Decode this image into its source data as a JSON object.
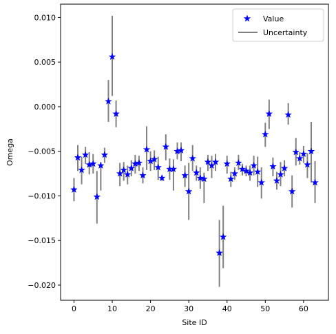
{
  "chart_data": {
    "type": "scatter",
    "xlabel": "Site ID",
    "ylabel": "Omega",
    "xlim": [
      -3.5,
      66.5
    ],
    "ylim": [
      -0.0217,
      0.0115
    ],
    "xticks": [
      0,
      10,
      20,
      30,
      40,
      50,
      60
    ],
    "xtick_labels": [
      "0",
      "10",
      "20",
      "30",
      "40",
      "50",
      "60"
    ],
    "yticks": [
      0.01,
      0.005,
      0.0,
      -0.005,
      -0.01,
      -0.015,
      -0.02
    ],
    "ytick_labels": [
      "0.010",
      "0.005",
      "0.000",
      "−0.005",
      "−0.010",
      "−0.015",
      "−0.020"
    ],
    "grid": false,
    "legend_position": "top-right",
    "legend": [
      {
        "label": "Value",
        "marker": "star",
        "color": "#0000ff"
      },
      {
        "label": "Uncertainty",
        "marker": "line",
        "color": "#808080"
      }
    ],
    "points": [
      {
        "x": 0,
        "y": -0.0093,
        "lo": -0.0106,
        "hi": -0.008
      },
      {
        "x": 1,
        "y": -0.0057,
        "lo": -0.0072,
        "hi": -0.0043
      },
      {
        "x": 2,
        "y": -0.0071,
        "lo": -0.0087,
        "hi": -0.0056
      },
      {
        "x": 3,
        "y": -0.0054,
        "lo": -0.0064,
        "hi": -0.0045
      },
      {
        "x": 4,
        "y": -0.0065,
        "lo": -0.0076,
        "hi": -0.0051
      },
      {
        "x": 5,
        "y": -0.0064,
        "lo": -0.0075,
        "hi": -0.0053
      },
      {
        "x": 6,
        "y": -0.0101,
        "lo": -0.0131,
        "hi": -0.0072
      },
      {
        "x": 7,
        "y": -0.0066,
        "lo": -0.0094,
        "hi": -0.0062
      },
      {
        "x": 8,
        "y": -0.0054,
        "lo": -0.0063,
        "hi": -0.0046
      },
      {
        "x": 9,
        "y": 0.0006,
        "lo": -0.0017,
        "hi": 0.003
      },
      {
        "x": 10,
        "y": 0.0056,
        "lo": 0.0012,
        "hi": 0.0102
      },
      {
        "x": 11,
        "y": -0.0008,
        "lo": -0.0023,
        "hi": 0.0007
      },
      {
        "x": 12,
        "y": -0.0075,
        "lo": -0.0089,
        "hi": -0.0063
      },
      {
        "x": 13,
        "y": -0.0071,
        "lo": -0.0083,
        "hi": -0.0062
      },
      {
        "x": 14,
        "y": -0.0076,
        "lo": -0.0087,
        "hi": -0.0066
      },
      {
        "x": 15,
        "y": -0.0069,
        "lo": -0.0078,
        "hi": -0.006
      },
      {
        "x": 16,
        "y": -0.0064,
        "lo": -0.0075,
        "hi": -0.0054
      },
      {
        "x": 17,
        "y": -0.0063,
        "lo": -0.0072,
        "hi": -0.0055
      },
      {
        "x": 18,
        "y": -0.0077,
        "lo": -0.0086,
        "hi": -0.0068
      },
      {
        "x": 19,
        "y": -0.0048,
        "lo": -0.0071,
        "hi": -0.0022
      },
      {
        "x": 20,
        "y": -0.0061,
        "lo": -0.0072,
        "hi": -0.005
      },
      {
        "x": 21,
        "y": -0.0059,
        "lo": -0.0071,
        "hi": -0.0049
      },
      {
        "x": 22,
        "y": -0.0068,
        "lo": -0.0082,
        "hi": -0.0056
      },
      {
        "x": 23,
        "y": -0.008,
        "lo": -0.0083,
        "hi": -0.0077
      },
      {
        "x": 24,
        "y": -0.0045,
        "lo": -0.006,
        "hi": -0.0031
      },
      {
        "x": 25,
        "y": -0.007,
        "lo": -0.0082,
        "hi": -0.0058
      },
      {
        "x": 26,
        "y": -0.007,
        "lo": -0.0094,
        "hi": -0.0059
      },
      {
        "x": 27,
        "y": -0.005,
        "lo": -0.0059,
        "hi": -0.004
      },
      {
        "x": 28,
        "y": -0.0049,
        "lo": -0.0061,
        "hi": -0.004
      },
      {
        "x": 29,
        "y": -0.0077,
        "lo": -0.009,
        "hi": -0.0066
      },
      {
        "x": 30,
        "y": -0.0095,
        "lo": -0.0127,
        "hi": -0.0063
      },
      {
        "x": 31,
        "y": -0.0058,
        "lo": -0.0072,
        "hi": -0.0043
      },
      {
        "x": 32,
        "y": -0.0074,
        "lo": -0.0083,
        "hi": -0.0066
      },
      {
        "x": 33,
        "y": -0.008,
        "lo": -0.0092,
        "hi": -0.0068
      },
      {
        "x": 34,
        "y": -0.0081,
        "lo": -0.0108,
        "hi": -0.0074
      },
      {
        "x": 35,
        "y": -0.0062,
        "lo": -0.0072,
        "hi": -0.0054
      },
      {
        "x": 36,
        "y": -0.0066,
        "lo": -0.008,
        "hi": -0.0055
      },
      {
        "x": 37,
        "y": -0.0062,
        "lo": -0.0072,
        "hi": -0.0053
      },
      {
        "x": 38,
        "y": -0.0164,
        "lo": -0.0202,
        "hi": -0.0127
      },
      {
        "x": 39,
        "y": -0.0146,
        "lo": -0.0181,
        "hi": -0.0111
      },
      {
        "x": 40,
        "y": -0.0064,
        "lo": -0.0075,
        "hi": -0.0055
      },
      {
        "x": 41,
        "y": -0.0081,
        "lo": -0.009,
        "hi": -0.0073
      },
      {
        "x": 42,
        "y": -0.0075,
        "lo": -0.0082,
        "hi": -0.0068
      },
      {
        "x": 43,
        "y": -0.0063,
        "lo": -0.0071,
        "hi": -0.0054
      },
      {
        "x": 44,
        "y": -0.007,
        "lo": -0.0077,
        "hi": -0.0064
      },
      {
        "x": 45,
        "y": -0.0072,
        "lo": -0.0078,
        "hi": -0.0066
      },
      {
        "x": 46,
        "y": -0.0074,
        "lo": -0.0083,
        "hi": -0.0066
      },
      {
        "x": 47,
        "y": -0.0066,
        "lo": -0.0077,
        "hi": -0.0055
      },
      {
        "x": 48,
        "y": -0.0073,
        "lo": -0.009,
        "hi": -0.0056
      },
      {
        "x": 49,
        "y": -0.0085,
        "lo": -0.0103,
        "hi": -0.0068
      },
      {
        "x": 50,
        "y": -0.0031,
        "lo": -0.0045,
        "hi": -0.0018
      },
      {
        "x": 51,
        "y": -0.0008,
        "lo": -0.0025,
        "hi": 0.0008
      },
      {
        "x": 52,
        "y": -0.0067,
        "lo": -0.0078,
        "hi": -0.0057
      },
      {
        "x": 53,
        "y": -0.0083,
        "lo": -0.0093,
        "hi": -0.0073
      },
      {
        "x": 54,
        "y": -0.0076,
        "lo": -0.0089,
        "hi": -0.0062
      },
      {
        "x": 55,
        "y": -0.0069,
        "lo": -0.0078,
        "hi": -0.006
      },
      {
        "x": 56,
        "y": -0.0009,
        "lo": -0.002,
        "hi": 0.0004
      },
      {
        "x": 57,
        "y": -0.0095,
        "lo": -0.0113,
        "hi": -0.0077
      },
      {
        "x": 58,
        "y": -0.0051,
        "lo": -0.0066,
        "hi": -0.0035
      },
      {
        "x": 59,
        "y": -0.0058,
        "lo": -0.0065,
        "hi": -0.0051
      },
      {
        "x": 60,
        "y": -0.0053,
        "lo": -0.0063,
        "hi": -0.0044
      },
      {
        "x": 61,
        "y": -0.0065,
        "lo": -0.008,
        "hi": -0.0052
      },
      {
        "x": 62,
        "y": -0.005,
        "lo": -0.0085,
        "hi": -0.0017
      },
      {
        "x": 63,
        "y": -0.0085,
        "lo": -0.0108,
        "hi": -0.0061
      }
    ],
    "colors": {
      "marker": "#0000ff",
      "errorbar": "#808080",
      "axis": "#000000"
    }
  }
}
